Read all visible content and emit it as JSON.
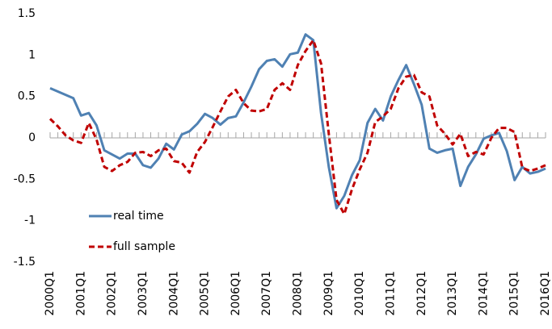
{
  "chart_data": {
    "type": "line",
    "categories": [
      "2000Q1",
      null,
      null,
      null,
      "2001Q1",
      null,
      null,
      null,
      "2002Q1",
      null,
      null,
      null,
      "2003Q1",
      null,
      null,
      null,
      "2004Q1",
      null,
      null,
      null,
      "2005Q1",
      null,
      null,
      null,
      "2006Q1",
      null,
      null,
      null,
      "2007Q1",
      null,
      null,
      null,
      "2008Q1",
      null,
      null,
      null,
      "2009Q1",
      null,
      null,
      null,
      "2010Q1",
      null,
      null,
      null,
      "2011Q1",
      null,
      null,
      null,
      "2012Q1",
      null,
      null,
      null,
      "2013Q1",
      null,
      null,
      null,
      "2014Q1",
      null,
      null,
      null,
      "2015Q1",
      null,
      null,
      null,
      "2016Q1"
    ],
    "series": [
      {
        "name": "real time",
        "color": "#4f81b3",
        "dashed": false,
        "values": [
          0.6,
          0.56,
          0.52,
          0.48,
          0.27,
          0.3,
          0.15,
          -0.15,
          -0.2,
          -0.25,
          -0.19,
          -0.19,
          -0.33,
          -0.36,
          -0.25,
          -0.07,
          -0.14,
          0.04,
          0.08,
          0.17,
          0.29,
          0.24,
          0.16,
          0.24,
          0.26,
          0.43,
          0.62,
          0.83,
          0.93,
          0.95,
          0.86,
          1.01,
          1.03,
          1.25,
          1.18,
          0.3,
          -0.35,
          -0.85,
          -0.7,
          -0.45,
          -0.27,
          0.18,
          0.35,
          0.21,
          0.5,
          0.7,
          0.88,
          0.65,
          0.4,
          -0.13,
          -0.18,
          -0.15,
          -0.13,
          -0.58,
          -0.35,
          -0.2,
          -0.01,
          0.03,
          0.06,
          -0.16,
          -0.51,
          -0.35,
          -0.43,
          -0.41,
          -0.37
        ]
      },
      {
        "name": "full sample",
        "color": "#c00000",
        "dashed": true,
        "values": [
          0.23,
          0.14,
          0.03,
          -0.03,
          -0.06,
          0.18,
          -0.02,
          -0.35,
          -0.4,
          -0.33,
          -0.29,
          -0.18,
          -0.17,
          -0.22,
          -0.15,
          -0.13,
          -0.28,
          -0.3,
          -0.42,
          -0.17,
          -0.05,
          0.13,
          0.32,
          0.5,
          0.58,
          0.42,
          0.33,
          0.32,
          0.35,
          0.58,
          0.66,
          0.58,
          0.88,
          1.05,
          1.18,
          0.9,
          0.05,
          -0.75,
          -0.92,
          -0.62,
          -0.38,
          -0.18,
          0.19,
          0.26,
          0.35,
          0.6,
          0.74,
          0.76,
          0.55,
          0.5,
          0.15,
          0.05,
          -0.08,
          0.05,
          -0.22,
          -0.17,
          -0.2,
          0.0,
          0.12,
          0.12,
          0.07,
          -0.36,
          -0.4,
          -0.37,
          -0.33
        ]
      }
    ],
    "ylim": [
      -1.5,
      1.5
    ],
    "yticks": [
      1.5,
      1,
      0.5,
      0,
      -0.5,
      -1,
      -1.5
    ],
    "grid": false,
    "legend": "lower left"
  }
}
